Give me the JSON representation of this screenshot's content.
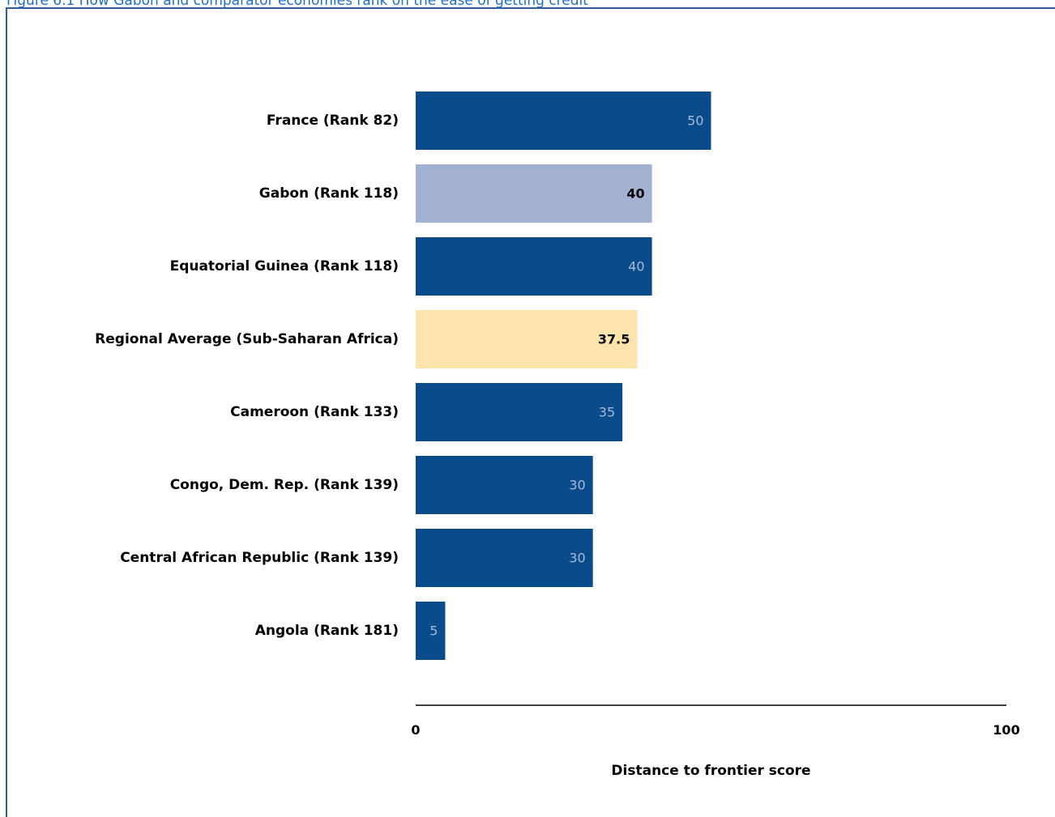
{
  "figure": {
    "title": "Figure 6.1 How Gabon and comparator economies rank on the ease of getting credit"
  },
  "chart_data": {
    "type": "bar",
    "orientation": "horizontal",
    "categories": [
      "France (Rank 82)",
      "Gabon (Rank 118)",
      "Equatorial Guinea (Rank 118)",
      "Regional Average (Sub-Saharan Africa)",
      "Cameroon (Rank 133)",
      "Congo, Dem. Rep. (Rank 139)",
      "Central African Republic (Rank 139)",
      "Angola (Rank 181)"
    ],
    "values": [
      50,
      40,
      40,
      37.5,
      35,
      30,
      30,
      5
    ],
    "value_labels": [
      "50",
      "40",
      "40",
      "37.5",
      "35",
      "30",
      "30",
      "5"
    ],
    "bar_colors": [
      "#0a4b8c",
      "#a3b1d3",
      "#0a4b8c",
      "#fde4ac",
      "#0a4b8c",
      "#0a4b8c",
      "#0a4b8c",
      "#0a4b8c"
    ],
    "label_colors": [
      "#a8bad6",
      "#000000",
      "#a8bad6",
      "#000000",
      "#a8bad6",
      "#a8bad6",
      "#a8bad6",
      "#a8bad6"
    ],
    "label_bold": [
      false,
      true,
      false,
      true,
      false,
      false,
      false,
      false
    ],
    "xlim": [
      0,
      100
    ],
    "xticks": [
      "0",
      "100"
    ],
    "xlabel": "Distance to frontier score",
    "grid": false,
    "legend": "none"
  }
}
